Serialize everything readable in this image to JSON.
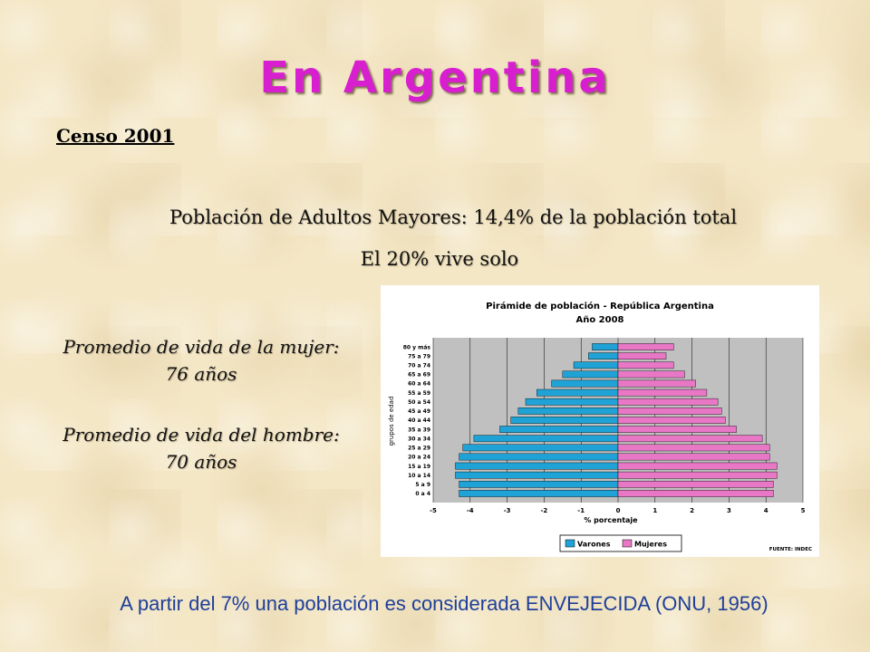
{
  "slide": {
    "title": "En Argentina",
    "censo": "Censo 2001",
    "stat_adultos": "Población de Adultos Mayores: 14,4% de la población total",
    "stat_solo": "El 20% vive solo",
    "mujer_line1": "Promedio de vida de la mujer:",
    "mujer_line2": "76 años",
    "hombre_line1": "Promedio de vida del hombre:",
    "hombre_line2": "70 años",
    "footer": "A partir del 7% una población es considerada ENVEJECIDA (ONU, 1956)"
  },
  "chart_data": {
    "type": "bar",
    "orientation": "horizontal-pyramid",
    "title": "Pirámide de población - República Argentina",
    "subtitle": "Año 2008",
    "xlabel": "% porcentaje",
    "ylabel": "grupos de edad",
    "source": "FUENTE: INDEC",
    "xlim": [
      -5,
      5
    ],
    "xticks": [
      "-5",
      "-4",
      "-3",
      "-2",
      "-1",
      "0",
      "1",
      "2",
      "3",
      "4",
      "5"
    ],
    "grid": "vertical",
    "legend": "bottom",
    "categories": [
      "0 a 4",
      "5 a 9",
      "10 a 14",
      "15 a 19",
      "20 a 24",
      "25 a 29",
      "30 a 34",
      "35 a 39",
      "40 a 44",
      "45 a 49",
      "50 a 54",
      "55 a 59",
      "60 a 64",
      "65 a 69",
      "70 a 74",
      "75 a 79",
      "80 y más"
    ],
    "series": [
      {
        "name": "Varones",
        "color": "#1fa3d6",
        "values": [
          4.3,
          4.3,
          4.4,
          4.4,
          4.3,
          4.2,
          3.9,
          3.2,
          2.9,
          2.7,
          2.5,
          2.2,
          1.8,
          1.5,
          1.2,
          0.8,
          0.7
        ]
      },
      {
        "name": "Mujeres",
        "color": "#e877c6",
        "values": [
          4.2,
          4.2,
          4.3,
          4.3,
          4.1,
          4.1,
          3.9,
          3.2,
          2.9,
          2.8,
          2.7,
          2.4,
          2.1,
          1.8,
          1.5,
          1.3,
          1.5
        ]
      }
    ]
  }
}
